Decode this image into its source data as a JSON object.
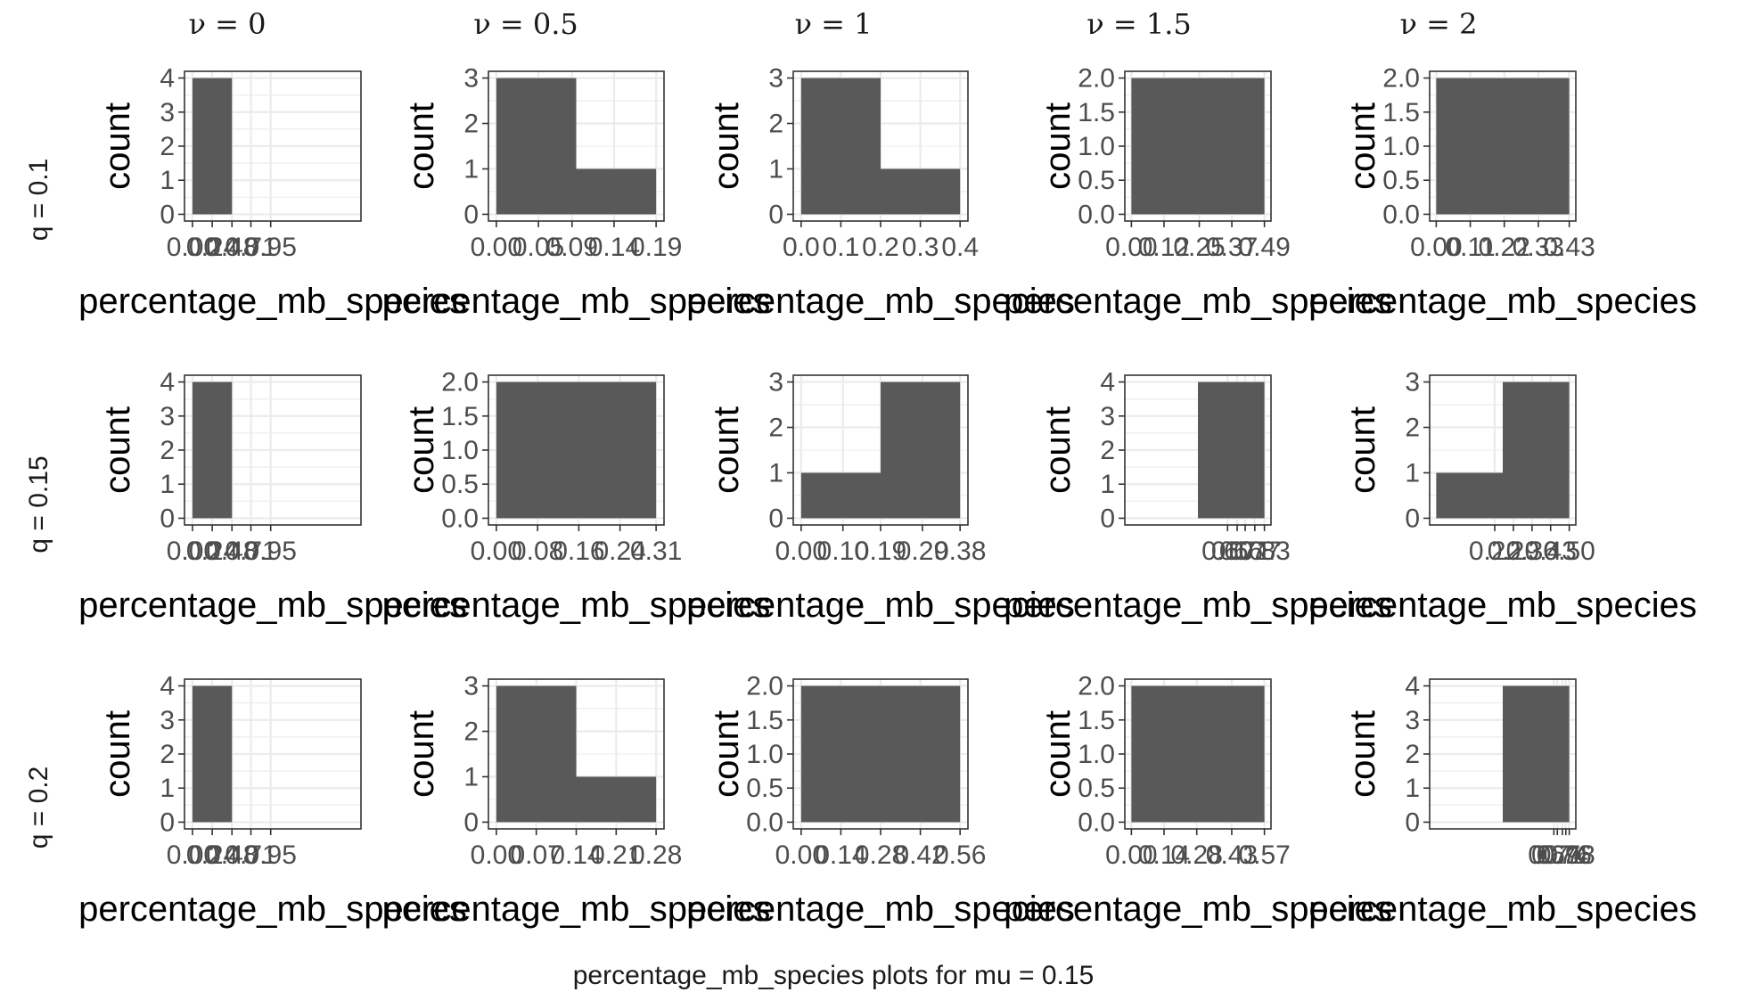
{
  "chart_data": {
    "type": "bar",
    "caption": "percentage_mb_species plots for mu = 0.15",
    "column_titles": [
      "ν = 0",
      "ν = 0.5",
      "ν = 1",
      "ν = 1.5",
      "ν = 2"
    ],
    "row_labels": [
      "q =  0.1",
      "q =  0.15",
      "q =  0.2"
    ],
    "xlabel": "percentage_mb_species",
    "ylabel": "count",
    "grid": true,
    "panels": [
      {
        "row": 0,
        "col": 0,
        "xlim": [
          0,
          1.95
        ],
        "ylim": [
          0,
          4
        ],
        "yticks": [
          "0",
          "1",
          "2",
          "3",
          "4"
        ],
        "xticks": [
          {
            "v": 0,
            "t": "0.00"
          },
          {
            "v": 0.24,
            "t": "0.24"
          },
          {
            "v": 0.48,
            "t": "0.48"
          },
          {
            "v": 0.71,
            "t": "0.71"
          },
          {
            "v": 0.95,
            "t": "0.95"
          }
        ],
        "bins": [
          {
            "x0": 0,
            "x1": 0.48,
            "count": 4
          }
        ]
      },
      {
        "row": 0,
        "col": 1,
        "xlim": [
          0,
          0.19
        ],
        "ylim": [
          0,
          3
        ],
        "yticks": [
          "0",
          "1",
          "2",
          "3"
        ],
        "xticks": [
          {
            "v": 0,
            "t": "0.00"
          },
          {
            "v": 0.05,
            "t": "0.05"
          },
          {
            "v": 0.09,
            "t": "0.09"
          },
          {
            "v": 0.14,
            "t": "0.14"
          },
          {
            "v": 0.19,
            "t": "0.19"
          }
        ],
        "bins": [
          {
            "x0": 0,
            "x1": 0.095,
            "count": 3
          },
          {
            "x0": 0.095,
            "x1": 0.19,
            "count": 1
          }
        ]
      },
      {
        "row": 0,
        "col": 2,
        "xlim": [
          0,
          0.4
        ],
        "ylim": [
          0,
          3
        ],
        "yticks": [
          "0",
          "1",
          "2",
          "3"
        ],
        "xticks": [
          {
            "v": 0,
            "t": "0.0"
          },
          {
            "v": 0.1,
            "t": "0.1"
          },
          {
            "v": 0.2,
            "t": "0.2"
          },
          {
            "v": 0.3,
            "t": "0.3"
          },
          {
            "v": 0.4,
            "t": "0.4"
          }
        ],
        "bins": [
          {
            "x0": 0,
            "x1": 0.2,
            "count": 3
          },
          {
            "x0": 0.2,
            "x1": 0.4,
            "count": 1
          }
        ]
      },
      {
        "row": 0,
        "col": 3,
        "xlim": [
          0,
          0.49
        ],
        "ylim": [
          0,
          2
        ],
        "yticks": [
          "0.0",
          "0.5",
          "1.0",
          "1.5",
          "2.0"
        ],
        "xticks": [
          {
            "v": 0,
            "t": "0.00"
          },
          {
            "v": 0.12,
            "t": "0.12"
          },
          {
            "v": 0.25,
            "t": "0.25"
          },
          {
            "v": 0.37,
            "t": "0.37"
          },
          {
            "v": 0.49,
            "t": "0.49"
          }
        ],
        "bins": [
          {
            "x0": 0,
            "x1": 0.49,
            "count": 2
          }
        ]
      },
      {
        "row": 0,
        "col": 4,
        "xlim": [
          0,
          0.43
        ],
        "ylim": [
          0,
          2
        ],
        "yticks": [
          "0.0",
          "0.5",
          "1.0",
          "1.5",
          "2.0"
        ],
        "xticks": [
          {
            "v": 0,
            "t": "0.00"
          },
          {
            "v": 0.11,
            "t": "0.11"
          },
          {
            "v": 0.22,
            "t": "0.22"
          },
          {
            "v": 0.33,
            "t": "0.33"
          },
          {
            "v": 0.43,
            "t": "0.43"
          }
        ],
        "bins": [
          {
            "x0": 0,
            "x1": 0.43,
            "count": 2
          }
        ]
      },
      {
        "row": 1,
        "col": 0,
        "xlim": [
          0,
          1.95
        ],
        "ylim": [
          0,
          4
        ],
        "yticks": [
          "0",
          "1",
          "2",
          "3",
          "4"
        ],
        "xticks": [
          {
            "v": 0,
            "t": "0.00"
          },
          {
            "v": 0.24,
            "t": "0.24"
          },
          {
            "v": 0.48,
            "t": "0.48"
          },
          {
            "v": 0.71,
            "t": "0.71"
          },
          {
            "v": 0.95,
            "t": "0.95"
          }
        ],
        "bins": [
          {
            "x0": 0,
            "x1": 0.48,
            "count": 4
          }
        ]
      },
      {
        "row": 1,
        "col": 1,
        "xlim": [
          0,
          0.31
        ],
        "ylim": [
          0,
          2
        ],
        "yticks": [
          "0.0",
          "0.5",
          "1.0",
          "1.5",
          "2.0"
        ],
        "xticks": [
          {
            "v": 0,
            "t": "0.00"
          },
          {
            "v": 0.08,
            "t": "0.08"
          },
          {
            "v": 0.16,
            "t": "0.16"
          },
          {
            "v": 0.24,
            "t": "0.24"
          },
          {
            "v": 0.31,
            "t": "0.31"
          }
        ],
        "bins": [
          {
            "x0": 0,
            "x1": 0.31,
            "count": 2
          }
        ]
      },
      {
        "row": 1,
        "col": 2,
        "xlim": [
          0,
          0.38
        ],
        "ylim": [
          0,
          3
        ],
        "yticks": [
          "0",
          "1",
          "2",
          "3"
        ],
        "xticks": [
          {
            "v": 0,
            "t": "0.00"
          },
          {
            "v": 0.1,
            "t": "0.10"
          },
          {
            "v": 0.19,
            "t": "0.19"
          },
          {
            "v": 0.29,
            "t": "0.29"
          },
          {
            "v": 0.38,
            "t": "0.38"
          }
        ],
        "bins": [
          {
            "x0": 0,
            "x1": 0.19,
            "count": 1
          },
          {
            "x0": 0.19,
            "x1": 0.38,
            "count": 3
          }
        ]
      },
      {
        "row": 1,
        "col": 3,
        "xlim": [
          0,
          0.83
        ],
        "ylim": [
          0,
          4
        ],
        "yticks": [
          "0",
          "1",
          "2",
          "3",
          "4"
        ],
        "xticks": [
          {
            "v": 0.6,
            "t": "0.60"
          },
          {
            "v": 0.66,
            "t": "0.66"
          },
          {
            "v": 0.71,
            "t": "0.71"
          },
          {
            "v": 0.77,
            "t": "0.77"
          },
          {
            "v": 0.83,
            "t": "0.83"
          }
        ],
        "bins": [
          {
            "x0": 0.415,
            "x1": 0.83,
            "count": 4
          }
        ]
      },
      {
        "row": 1,
        "col": 4,
        "xlim": [
          0,
          0.5
        ],
        "ylim": [
          0,
          3
        ],
        "yticks": [
          "0",
          "1",
          "2",
          "3"
        ],
        "xticks": [
          {
            "v": 0.22,
            "t": "0.22"
          },
          {
            "v": 0.29,
            "t": "0.29"
          },
          {
            "v": 0.36,
            "t": "0.36"
          },
          {
            "v": 0.43,
            "t": "0.43"
          },
          {
            "v": 0.5,
            "t": "0.50"
          }
        ],
        "bins": [
          {
            "x0": 0,
            "x1": 0.25,
            "count": 1
          },
          {
            "x0": 0.25,
            "x1": 0.5,
            "count": 3
          }
        ]
      },
      {
        "row": 2,
        "col": 0,
        "xlim": [
          0,
          1.95
        ],
        "ylim": [
          0,
          4
        ],
        "yticks": [
          "0",
          "1",
          "2",
          "3",
          "4"
        ],
        "xticks": [
          {
            "v": 0,
            "t": "0.00"
          },
          {
            "v": 0.24,
            "t": "0.24"
          },
          {
            "v": 0.48,
            "t": "0.48"
          },
          {
            "v": 0.71,
            "t": "0.71"
          },
          {
            "v": 0.95,
            "t": "0.95"
          }
        ],
        "bins": [
          {
            "x0": 0,
            "x1": 0.48,
            "count": 4
          }
        ]
      },
      {
        "row": 2,
        "col": 1,
        "xlim": [
          0,
          0.28
        ],
        "ylim": [
          0,
          3
        ],
        "yticks": [
          "0",
          "1",
          "2",
          "3"
        ],
        "xticks": [
          {
            "v": 0,
            "t": "0.00"
          },
          {
            "v": 0.07,
            "t": "0.07"
          },
          {
            "v": 0.14,
            "t": "0.14"
          },
          {
            "v": 0.21,
            "t": "0.21"
          },
          {
            "v": 0.28,
            "t": "0.28"
          }
        ],
        "bins": [
          {
            "x0": 0,
            "x1": 0.14,
            "count": 3
          },
          {
            "x0": 0.14,
            "x1": 0.28,
            "count": 1
          }
        ]
      },
      {
        "row": 2,
        "col": 2,
        "xlim": [
          0,
          0.56
        ],
        "ylim": [
          0,
          2
        ],
        "yticks": [
          "0.0",
          "0.5",
          "1.0",
          "1.5",
          "2.0"
        ],
        "xticks": [
          {
            "v": 0,
            "t": "0.00"
          },
          {
            "v": 0.14,
            "t": "0.14"
          },
          {
            "v": 0.28,
            "t": "0.28"
          },
          {
            "v": 0.42,
            "t": "0.42"
          },
          {
            "v": 0.56,
            "t": "0.56"
          }
        ],
        "bins": [
          {
            "x0": 0,
            "x1": 0.56,
            "count": 2
          }
        ]
      },
      {
        "row": 2,
        "col": 3,
        "xlim": [
          0,
          0.57
        ],
        "ylim": [
          0,
          2
        ],
        "yticks": [
          "0.0",
          "0.5",
          "1.0",
          "1.5",
          "2.0"
        ],
        "xticks": [
          {
            "v": 0,
            "t": "0.00"
          },
          {
            "v": 0.14,
            "t": "0.14"
          },
          {
            "v": 0.28,
            "t": "0.28"
          },
          {
            "v": 0.43,
            "t": "0.43"
          },
          {
            "v": 0.57,
            "t": "0.57"
          }
        ],
        "bins": [
          {
            "x0": 0,
            "x1": 0.57,
            "count": 2
          }
        ]
      },
      {
        "row": 2,
        "col": 4,
        "xlim": [
          0,
          0.78
        ],
        "ylim": [
          0,
          4
        ],
        "yticks": [
          "0",
          "1",
          "2",
          "3",
          "4"
        ],
        "xticks": [
          {
            "v": 0.69,
            "t": "0.69"
          },
          {
            "v": 0.71,
            "t": "0.71"
          },
          {
            "v": 0.74,
            "t": "0.74"
          },
          {
            "v": 0.76,
            "t": "0.76"
          },
          {
            "v": 0.78,
            "t": "0.78"
          }
        ],
        "bins": [
          {
            "x0": 0.39,
            "x1": 0.78,
            "count": 4
          }
        ]
      }
    ]
  }
}
